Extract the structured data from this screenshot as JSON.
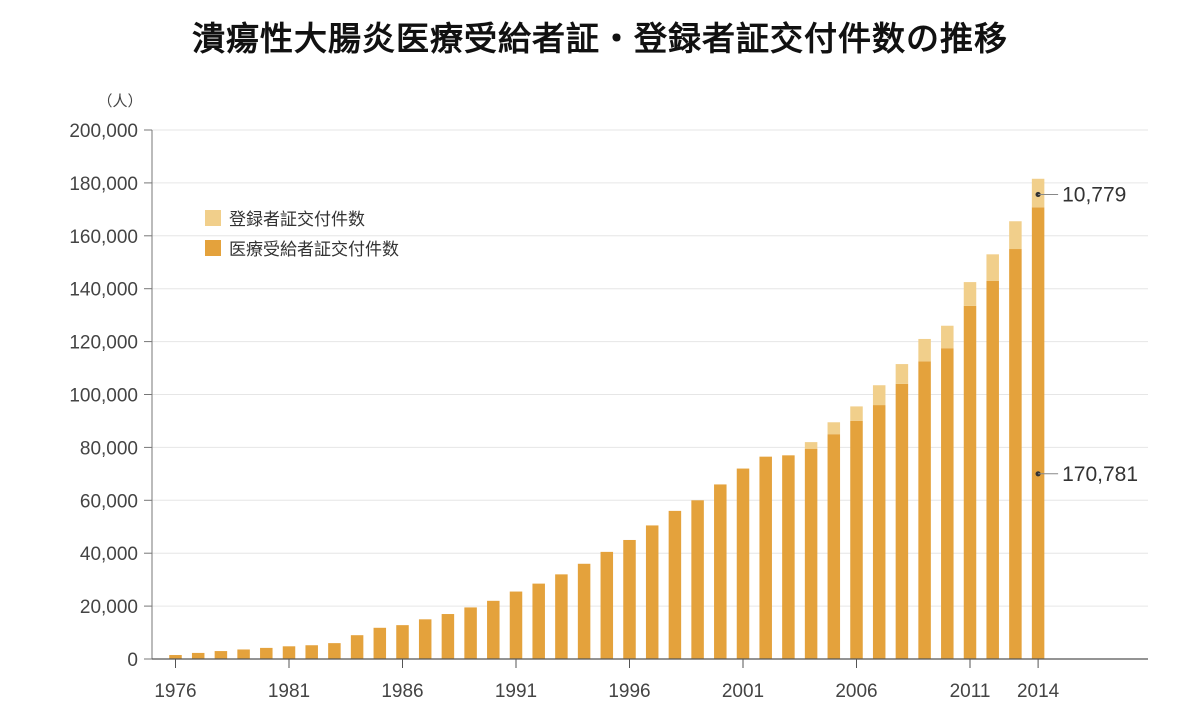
{
  "chart_data": {
    "type": "bar",
    "stacked": true,
    "title": "潰瘍性大腸炎医療受給者証・登録者証交付件数の推移",
    "ylabel": "（人）",
    "ylim": [
      0,
      200000
    ],
    "yticks": [
      "0",
      "20,000",
      "40,000",
      "60,000",
      "80,000",
      "100,000",
      "120,000",
      "140,000",
      "160,000",
      "180,000",
      "200,000"
    ],
    "xtick_labels": [
      "1976",
      "1981",
      "1986",
      "1991",
      "1996",
      "2001",
      "2006",
      "2011",
      "2014"
    ],
    "xtick_years": [
      1976,
      1981,
      1986,
      1991,
      1996,
      2001,
      2006,
      2011,
      2014
    ],
    "grid": true,
    "legend_position": "top-left",
    "categories": [
      1976,
      1977,
      1978,
      1979,
      1980,
      1981,
      1982,
      1983,
      1984,
      1985,
      1986,
      1987,
      1988,
      1989,
      1990,
      1991,
      1992,
      1993,
      1994,
      1995,
      1996,
      1997,
      1998,
      1999,
      2000,
      2001,
      2002,
      2003,
      2004,
      2005,
      2006,
      2007,
      2008,
      2009,
      2010,
      2011,
      2012,
      2013,
      2014
    ],
    "series": [
      {
        "name": "医療受給者証交付件数",
        "color": "#e4a23c",
        "values": [
          1500,
          2300,
          3000,
          3600,
          4200,
          4800,
          5200,
          6000,
          9000,
          11800,
          12800,
          15000,
          17000,
          19500,
          22000,
          25500,
          28500,
          32000,
          36000,
          40500,
          45000,
          50500,
          56000,
          60000,
          66000,
          72000,
          76500,
          77000,
          79500,
          85000,
          90000,
          96000,
          104000,
          112500,
          117500,
          133500,
          143000,
          155000,
          170781
        ]
      },
      {
        "name": "登録者証交付件数",
        "color": "#f1cf8b",
        "values": [
          0,
          0,
          0,
          0,
          0,
          0,
          0,
          0,
          0,
          0,
          0,
          0,
          0,
          0,
          0,
          0,
          0,
          0,
          0,
          0,
          0,
          0,
          0,
          0,
          0,
          0,
          0,
          0,
          2500,
          4500,
          5500,
          7500,
          7500,
          8500,
          8500,
          9000,
          10000,
          10500,
          10779
        ]
      }
    ],
    "annotations": [
      {
        "label": "10,779",
        "series": 1
      },
      {
        "label": "170,781",
        "series": 0
      }
    ]
  }
}
